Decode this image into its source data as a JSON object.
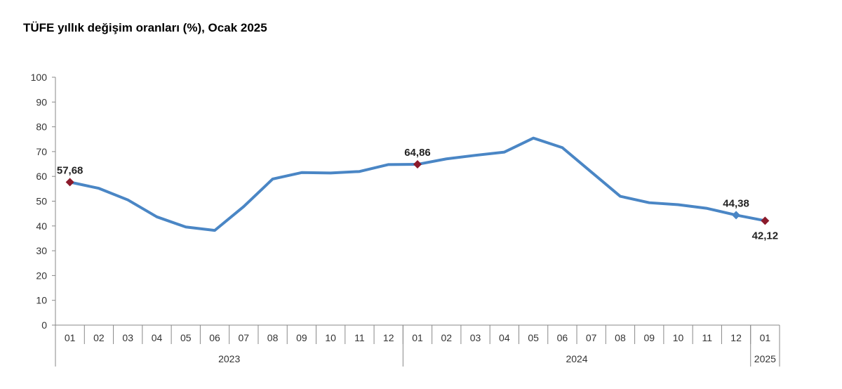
{
  "chart_data": {
    "type": "line",
    "title": "TÜFE yıllık değişim oranları (%), Ocak 2025",
    "xlabel": "",
    "ylabel": "",
    "ylim": [
      0,
      100
    ],
    "yticks": [
      0,
      10,
      20,
      30,
      40,
      50,
      60,
      70,
      80,
      90,
      100
    ],
    "categories": [
      "01",
      "02",
      "03",
      "04",
      "05",
      "06",
      "07",
      "08",
      "09",
      "10",
      "11",
      "12",
      "01",
      "02",
      "03",
      "04",
      "05",
      "06",
      "07",
      "08",
      "09",
      "10",
      "11",
      "12",
      "01"
    ],
    "year_groups": [
      {
        "label": "2023",
        "count": 12
      },
      {
        "label": "2024",
        "count": 12
      },
      {
        "label": "2025",
        "count": 1
      }
    ],
    "series": [
      {
        "name": "TÜFE",
        "color": "#4a86c5",
        "values": [
          57.68,
          55.18,
          50.51,
          43.68,
          39.59,
          38.21,
          47.83,
          58.94,
          61.53,
          61.36,
          61.98,
          64.77,
          64.86,
          67.07,
          68.5,
          69.8,
          75.45,
          71.6,
          61.78,
          51.97,
          49.38,
          48.58,
          47.09,
          44.38,
          42.12
        ]
      }
    ],
    "annotations": [
      {
        "index": 0,
        "label": "57,68",
        "marker_color": "#8b1a2b",
        "pos": "above"
      },
      {
        "index": 12,
        "label": "64,86",
        "marker_color": "#8b1a2b",
        "pos": "above"
      },
      {
        "index": 23,
        "label": "44,38",
        "marker_color": "#4a86c5",
        "pos": "above"
      },
      {
        "index": 24,
        "label": "42,12",
        "marker_color": "#8b1a2b",
        "pos": "below"
      }
    ],
    "grid": false
  }
}
